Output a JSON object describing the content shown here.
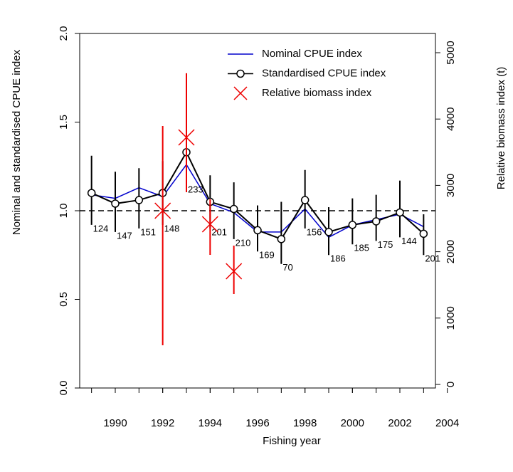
{
  "chart_data": {
    "type": "line",
    "x_label": "Fishing year",
    "y_label": "Nominal and standardised CPUE index",
    "y2_label": "Relative biomass index (t)",
    "x": [
      1989,
      1990,
      1991,
      1992,
      1993,
      1994,
      1995,
      1996,
      1997,
      1998,
      1999,
      2000,
      2001,
      2002,
      2003
    ],
    "xlim": [
      1988.5,
      2003.5
    ],
    "xticks": [
      1990,
      1992,
      1994,
      1996,
      1998,
      2000,
      2002,
      2004
    ],
    "ylim": [
      0,
      2.0
    ],
    "yticks": [
      {
        "value": 0,
        "label": "0.0"
      },
      0.5,
      {
        "value": 1,
        "label": "1.0"
      },
      1.5,
      {
        "value": 2,
        "label": "2.0"
      }
    ],
    "y2lim": [
      -54,
      5290
    ],
    "y2ticks": [
      0,
      1000,
      2000,
      3000,
      4000,
      5000
    ],
    "ref_line": 1.0,
    "legend": "top-right",
    "series": [
      {
        "name": "Nominal CPUE index",
        "color": "#0000cc",
        "values": [
          1.09,
          1.07,
          1.13,
          1.08,
          1.26,
          1.04,
          0.99,
          0.88,
          0.88,
          1.01,
          0.85,
          0.92,
          0.95,
          0.98,
          0.91
        ]
      },
      {
        "name": "Standardised CPUE index",
        "color": "#000000",
        "values": [
          1.1,
          1.04,
          1.06,
          1.1,
          1.33,
          1.05,
          1.01,
          0.89,
          0.84,
          1.06,
          0.88,
          0.92,
          0.94,
          0.99,
          0.87
        ],
        "lower": [
          0.92,
          0.88,
          0.9,
          0.92,
          1.14,
          0.9,
          0.84,
          0.77,
          0.7,
          0.9,
          0.75,
          0.81,
          0.83,
          0.85,
          0.75
        ],
        "upper": [
          1.31,
          1.22,
          1.24,
          1.28,
          1.58,
          1.2,
          1.16,
          1.03,
          1.05,
          1.23,
          1.02,
          1.07,
          1.09,
          1.17,
          0.98
        ],
        "n": [
          124,
          147,
          151,
          148,
          233,
          201,
          210,
          169,
          70,
          156,
          186,
          185,
          175,
          144,
          201
        ]
      },
      {
        "name": "Relative biomass index",
        "color": "#ee0000",
        "axis": "y2",
        "x": [
          1992,
          1993,
          1994,
          1995
        ],
        "values": [
          2618,
          3723,
          2414,
          1706
        ],
        "lower": [
          590,
          2897,
          1953,
          1363
        ],
        "upper": [
          3895,
          4690,
          2790,
          2092
        ]
      }
    ]
  }
}
